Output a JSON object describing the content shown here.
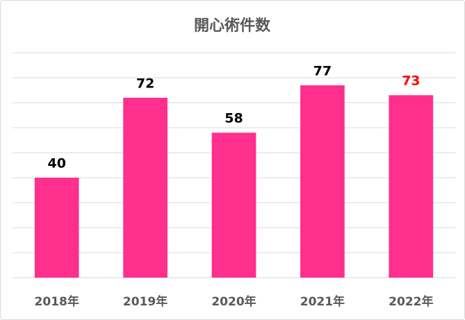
{
  "chart_data": {
    "type": "bar",
    "title": "開心術件数",
    "categories": [
      "2018年",
      "2019年",
      "2020年",
      "2021年",
      "2022年"
    ],
    "values": [
      40,
      72,
      58,
      77,
      73
    ],
    "color": "#ff2f8e",
    "value_label_colors": [
      "#000000",
      "#000000",
      "#000000",
      "#000000",
      "#ff0000"
    ],
    "ylim": [
      0,
      90
    ],
    "yticks": [
      0,
      10,
      20,
      30,
      40,
      50,
      60,
      70,
      80,
      90
    ],
    "grid": true
  }
}
